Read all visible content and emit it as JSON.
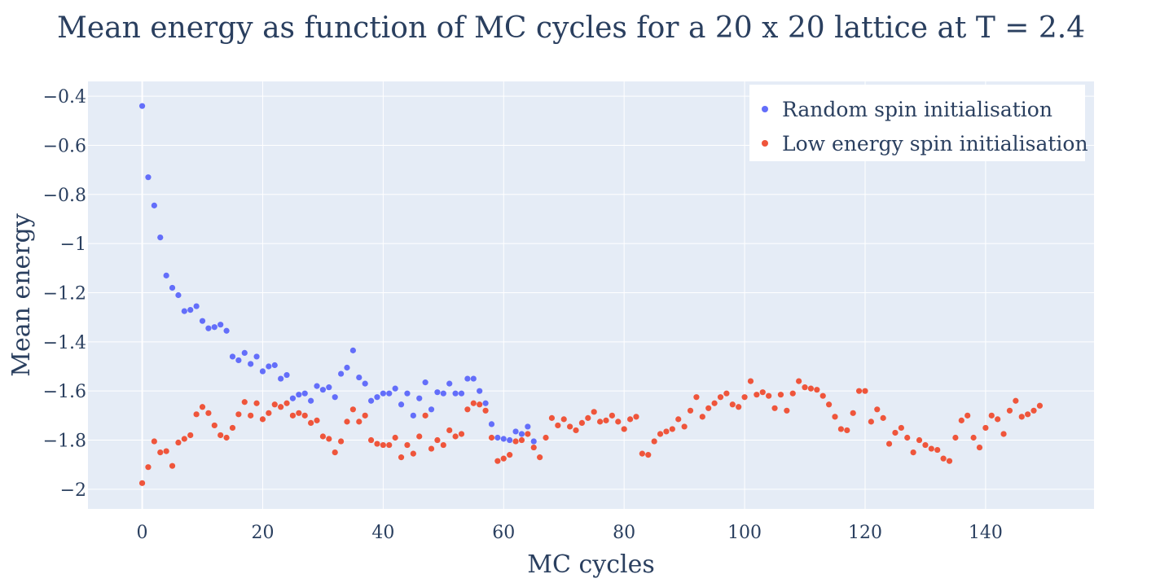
{
  "chart_data": {
    "type": "scatter",
    "title": "Mean energy as function of MC cycles for a 20 x 20 lattice at T = 2.4",
    "xlabel": "MC cycles",
    "ylabel": "Mean energy",
    "xlim": [
      -9,
      158
    ],
    "ylim": [
      -2.08,
      -0.34
    ],
    "xticks": [
      0,
      20,
      40,
      60,
      80,
      100,
      120,
      140
    ],
    "xtick_labels": [
      "0",
      "20",
      "40",
      "60",
      "80",
      "100",
      "120",
      "140"
    ],
    "yticks": [
      -0.4,
      -0.6,
      -0.8,
      -1,
      -1.2,
      -1.4,
      -1.6,
      -1.8,
      -2
    ],
    "ytick_labels": [
      "−0.4",
      "−0.6",
      "−0.8",
      "−1",
      "−1.2",
      "−1.4",
      "−1.6",
      "−1.8",
      "−2"
    ],
    "grid": true,
    "legend_position": "top-right",
    "series": [
      {
        "name": "Random  spin initialisation",
        "color": "#636efa",
        "x": [
          0,
          1,
          2,
          3,
          4,
          5,
          6,
          7,
          8,
          9,
          10,
          11,
          12,
          13,
          14,
          15,
          16,
          17,
          18,
          19,
          20,
          21,
          22,
          23,
          24,
          25,
          26,
          27,
          28,
          29,
          30,
          31,
          32,
          33,
          34,
          35,
          36,
          37,
          38,
          39,
          40,
          41,
          42,
          43,
          44,
          45,
          46,
          47,
          48,
          49,
          50,
          51,
          52,
          53,
          54,
          55,
          56,
          57,
          58,
          59,
          60,
          61,
          62,
          63,
          64,
          65
        ],
        "y": [
          -0.44,
          -0.73,
          -0.845,
          -0.975,
          -1.13,
          -1.18,
          -1.21,
          -1.275,
          -1.27,
          -1.255,
          -1.315,
          -1.345,
          -1.34,
          -1.33,
          -1.355,
          -1.46,
          -1.475,
          -1.445,
          -1.49,
          -1.46,
          -1.52,
          -1.5,
          -1.495,
          -1.55,
          -1.535,
          -1.63,
          -1.615,
          -1.61,
          -1.64,
          -1.58,
          -1.595,
          -1.585,
          -1.625,
          -1.53,
          -1.505,
          -1.435,
          -1.545,
          -1.57,
          -1.64,
          -1.625,
          -1.61,
          -1.61,
          -1.59,
          -1.655,
          -1.61,
          -1.7,
          -1.63,
          -1.565,
          -1.675,
          -1.605,
          -1.61,
          -1.57,
          -1.61,
          -1.61,
          -1.55,
          -1.55,
          -1.6,
          -1.65,
          -1.735,
          -1.79,
          -1.795,
          -1.8,
          -1.765,
          -1.775,
          -1.745,
          -1.805
        ]
      },
      {
        "name": "Low energy  spin initialisation",
        "color": "#ef553b",
        "x": [
          0,
          1,
          2,
          3,
          4,
          5,
          6,
          7,
          8,
          9,
          10,
          11,
          12,
          13,
          14,
          15,
          16,
          17,
          18,
          19,
          20,
          21,
          22,
          23,
          24,
          25,
          26,
          27,
          28,
          29,
          30,
          31,
          32,
          33,
          34,
          35,
          36,
          37,
          38,
          39,
          40,
          41,
          42,
          43,
          44,
          45,
          46,
          47,
          48,
          49,
          50,
          51,
          52,
          53,
          54,
          55,
          56,
          57,
          58,
          59,
          60,
          61,
          62,
          63,
          64,
          65,
          66,
          67,
          68,
          69,
          70,
          71,
          72,
          73,
          74,
          75,
          76,
          77,
          78,
          79,
          80,
          81,
          82,
          83,
          84,
          85,
          86,
          87,
          88,
          89,
          90,
          91,
          92,
          93,
          94,
          95,
          96,
          97,
          98,
          99,
          100,
          101,
          102,
          103,
          104,
          105,
          106,
          107,
          108,
          109,
          110,
          111,
          112,
          113,
          114,
          115,
          116,
          117,
          118,
          119,
          120,
          121,
          122,
          123,
          124,
          125,
          126,
          127,
          128,
          129,
          130,
          131,
          132,
          133,
          134,
          135,
          136,
          137,
          138,
          139,
          140,
          141,
          142,
          143,
          144,
          145,
          146,
          147,
          148,
          149
        ],
        "y": [
          -1.975,
          -1.91,
          -1.805,
          -1.85,
          -1.845,
          -1.905,
          -1.81,
          -1.795,
          -1.78,
          -1.695,
          -1.665,
          -1.69,
          -1.74,
          -1.78,
          -1.79,
          -1.75,
          -1.695,
          -1.645,
          -1.7,
          -1.65,
          -1.715,
          -1.69,
          -1.655,
          -1.665,
          -1.65,
          -1.7,
          -1.69,
          -1.7,
          -1.73,
          -1.72,
          -1.785,
          -1.795,
          -1.85,
          -1.805,
          -1.725,
          -1.675,
          -1.725,
          -1.7,
          -1.8,
          -1.815,
          -1.82,
          -1.82,
          -1.79,
          -1.87,
          -1.82,
          -1.855,
          -1.785,
          -1.7,
          -1.835,
          -1.8,
          -1.82,
          -1.76,
          -1.785,
          -1.775,
          -1.675,
          -1.65,
          -1.655,
          -1.68,
          -1.79,
          -1.885,
          -1.875,
          -1.86,
          -1.805,
          -1.8,
          -1.775,
          -1.83,
          -1.87,
          -1.79,
          -1.71,
          -1.74,
          -1.715,
          -1.745,
          -1.76,
          -1.73,
          -1.71,
          -1.685,
          -1.725,
          -1.72,
          -1.7,
          -1.725,
          -1.755,
          -1.715,
          -1.705,
          -1.855,
          -1.86,
          -1.805,
          -1.775,
          -1.765,
          -1.755,
          -1.715,
          -1.745,
          -1.68,
          -1.625,
          -1.705,
          -1.67,
          -1.65,
          -1.625,
          -1.61,
          -1.655,
          -1.665,
          -1.625,
          -1.56,
          -1.615,
          -1.605,
          -1.62,
          -1.67,
          -1.615,
          -1.68,
          -1.61,
          -1.56,
          -1.585,
          -1.59,
          -1.595,
          -1.62,
          -1.655,
          -1.705,
          -1.755,
          -1.76,
          -1.69,
          -1.6,
          -1.6,
          -1.725,
          -1.675,
          -1.71,
          -1.815,
          -1.77,
          -1.75,
          -1.79,
          -1.85,
          -1.8,
          -1.82,
          -1.835,
          -1.84,
          -1.875,
          -1.885,
          -1.79,
          -1.72,
          -1.7,
          -1.79,
          -1.83,
          -1.75,
          -1.7,
          -1.715,
          -1.775,
          -1.68,
          -1.64,
          -1.705,
          -1.695,
          -1.68,
          -1.66
        ]
      }
    ]
  }
}
